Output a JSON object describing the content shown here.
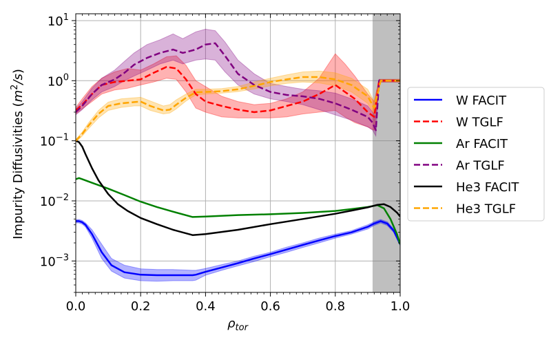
{
  "chart_data": {
    "type": "line",
    "yscale": "log",
    "xlabel": "ρ_tor",
    "ylabel": "Impurity Diffusivities (m²/s)",
    "xlim": [
      0.0,
      1.0
    ],
    "ylim": [
      0.0003,
      13
    ],
    "xticks": [
      0.0,
      0.2,
      0.4,
      0.6,
      0.8,
      1.0
    ],
    "xtick_labels": [
      "0.0",
      "0.2",
      "0.4",
      "0.6",
      "0.8",
      "1.0"
    ],
    "yticks": [
      0.001,
      0.01,
      0.1,
      1,
      10
    ],
    "ytick_labels": [
      {
        "base": "10",
        "exp": "−3"
      },
      {
        "base": "10",
        "exp": "−2"
      },
      {
        "base": "10",
        "exp": "−1"
      },
      {
        "base": "10",
        "exp": "0"
      },
      {
        "base": "10",
        "exp": "1"
      }
    ],
    "grid": true,
    "shaded_region": {
      "x_start": 0.915,
      "x_end": 1.0,
      "color": "#808080"
    },
    "legend_position": "outside-right",
    "series": [
      {
        "name": "W FACIT",
        "color": "#0000ff",
        "style": "solid",
        "x": [
          0,
          0.01,
          0.02,
          0.03,
          0.05,
          0.08,
          0.11,
          0.15,
          0.2,
          0.25,
          0.3,
          0.36,
          0.37,
          0.4,
          0.45,
          0.5,
          0.55,
          0.6,
          0.65,
          0.7,
          0.75,
          0.8,
          0.85,
          0.9,
          0.92,
          0.94,
          0.96,
          0.98,
          1.0
        ],
        "y": [
          0.0046,
          0.0046,
          0.0044,
          0.004,
          0.0028,
          0.0014,
          0.00085,
          0.00065,
          0.00059,
          0.00058,
          0.00058,
          0.00058,
          0.00059,
          0.00066,
          0.00078,
          0.00092,
          0.0011,
          0.0013,
          0.00155,
          0.00185,
          0.0022,
          0.0026,
          0.003,
          0.0037,
          0.0042,
          0.0046,
          0.0042,
          0.0032,
          0.0019
        ],
        "lower": [
          0.0043,
          0.0043,
          0.0041,
          0.0037,
          0.0024,
          0.0011,
          0.00068,
          0.00052,
          0.00047,
          0.00046,
          0.00047,
          0.00047,
          0.00048,
          0.00058,
          0.0007,
          0.00083,
          0.00098,
          0.00118,
          0.0014,
          0.00168,
          0.002,
          0.0024,
          0.0028,
          0.0034,
          0.0039,
          0.0043,
          0.0039,
          0.003,
          0.0018
        ],
        "upper": [
          0.0049,
          0.0049,
          0.0047,
          0.0043,
          0.0033,
          0.0019,
          0.0011,
          0.00085,
          0.00074,
          0.00072,
          0.00072,
          0.0007,
          0.0007,
          0.00075,
          0.00087,
          0.001,
          0.0012,
          0.0014,
          0.0017,
          0.002,
          0.0024,
          0.0028,
          0.0032,
          0.004,
          0.0045,
          0.0049,
          0.0045,
          0.0034,
          0.002
        ]
      },
      {
        "name": "W TGLF",
        "color": "#ff0000",
        "style": "dashed",
        "x": [
          0,
          0.02,
          0.05,
          0.08,
          0.12,
          0.16,
          0.2,
          0.24,
          0.28,
          0.31,
          0.34,
          0.37,
          0.4,
          0.45,
          0.5,
          0.55,
          0.6,
          0.65,
          0.7,
          0.75,
          0.8,
          0.83,
          0.86,
          0.9,
          0.92,
          0.935,
          0.95,
          0.97,
          1.0
        ],
        "y": [
          0.32,
          0.4,
          0.6,
          0.85,
          0.95,
          1.0,
          1.05,
          1.35,
          1.7,
          1.6,
          1.05,
          0.6,
          0.45,
          0.38,
          0.33,
          0.3,
          0.32,
          0.38,
          0.45,
          0.6,
          0.85,
          0.65,
          0.5,
          0.3,
          0.25,
          1.0,
          1.0,
          1.0,
          1.0
        ],
        "lower": [
          0.28,
          0.34,
          0.45,
          0.6,
          0.7,
          0.75,
          0.85,
          0.95,
          1.1,
          1.05,
          0.65,
          0.35,
          0.3,
          0.25,
          0.24,
          0.24,
          0.24,
          0.25,
          0.28,
          0.3,
          0.32,
          0.25,
          0.2,
          0.17,
          0.15,
          0.95,
          0.95,
          0.95,
          0.95
        ],
        "upper": [
          0.36,
          0.5,
          0.8,
          1.1,
          1.4,
          1.6,
          1.5,
          1.9,
          2.5,
          2.6,
          1.8,
          1.0,
          0.8,
          0.55,
          0.45,
          0.4,
          0.42,
          0.5,
          0.65,
          1.1,
          2.8,
          1.9,
          1.2,
          0.6,
          0.45,
          1.05,
          1.05,
          1.05,
          1.05
        ]
      },
      {
        "name": "Ar FACIT",
        "color": "#008000",
        "style": "solid",
        "x": [
          0,
          0.01,
          0.02,
          0.05,
          0.1,
          0.15,
          0.2,
          0.25,
          0.3,
          0.36,
          0.4,
          0.5,
          0.6,
          0.7,
          0.8,
          0.85,
          0.9,
          0.93,
          0.95,
          0.97,
          0.99,
          1.0
        ],
        "y": [
          0.023,
          0.024,
          0.023,
          0.02,
          0.016,
          0.0125,
          0.0097,
          0.0079,
          0.0066,
          0.0054,
          0.0055,
          0.0058,
          0.006,
          0.0063,
          0.0068,
          0.0073,
          0.0079,
          0.0085,
          0.0075,
          0.005,
          0.0028,
          0.0019
        ]
      },
      {
        "name": "Ar TGLF",
        "color": "#800080",
        "style": "dashed",
        "x": [
          0,
          0.02,
          0.05,
          0.08,
          0.12,
          0.15,
          0.18,
          0.22,
          0.26,
          0.3,
          0.33,
          0.37,
          0.4,
          0.43,
          0.46,
          0.5,
          0.55,
          0.6,
          0.65,
          0.7,
          0.75,
          0.8,
          0.85,
          0.9,
          0.915,
          0.925,
          0.935,
          0.95,
          0.97,
          1.0
        ],
        "y": [
          0.3,
          0.38,
          0.6,
          0.85,
          1.05,
          1.35,
          1.85,
          2.4,
          2.9,
          3.3,
          2.9,
          3.3,
          4.0,
          4.2,
          2.6,
          1.3,
          0.85,
          0.65,
          0.58,
          0.55,
          0.5,
          0.42,
          0.33,
          0.25,
          0.2,
          0.15,
          1.0,
          1.0,
          1.0,
          1.0
        ],
        "lower": [
          0.27,
          0.33,
          0.48,
          0.65,
          0.8,
          1.0,
          1.2,
          1.5,
          1.9,
          2.2,
          1.9,
          2.2,
          2.3,
          2.2,
          1.4,
          0.85,
          0.6,
          0.5,
          0.45,
          0.4,
          0.33,
          0.27,
          0.22,
          0.17,
          0.15,
          0.12,
          0.95,
          0.95,
          0.95,
          0.95
        ],
        "upper": [
          0.34,
          0.45,
          0.75,
          1.1,
          1.5,
          2.1,
          2.9,
          4.0,
          4.8,
          6.0,
          5.0,
          6.5,
          7.2,
          6.8,
          4.4,
          2.2,
          1.3,
          0.9,
          0.8,
          0.72,
          0.68,
          0.62,
          0.5,
          0.38,
          0.3,
          0.25,
          1.05,
          1.05,
          1.05,
          1.05
        ]
      },
      {
        "name": "He3 FACIT",
        "color": "#000000",
        "style": "solid",
        "x": [
          0,
          0.01,
          0.02,
          0.03,
          0.05,
          0.07,
          0.1,
          0.13,
          0.16,
          0.2,
          0.25,
          0.3,
          0.36,
          0.4,
          0.5,
          0.6,
          0.7,
          0.8,
          0.85,
          0.9,
          0.93,
          0.95,
          0.97,
          0.99,
          1.0
        ],
        "y": [
          0.1,
          0.095,
          0.08,
          0.06,
          0.035,
          0.022,
          0.013,
          0.0088,
          0.0068,
          0.0052,
          0.0041,
          0.0033,
          0.0027,
          0.0028,
          0.0033,
          0.0041,
          0.005,
          0.0061,
          0.0069,
          0.0078,
          0.0086,
          0.0088,
          0.0079,
          0.0064,
          0.0055
        ]
      },
      {
        "name": "He3 TGLF",
        "color": "#ffa500",
        "style": "dashed",
        "x": [
          0,
          0.02,
          0.04,
          0.07,
          0.1,
          0.14,
          0.18,
          0.2,
          0.23,
          0.27,
          0.29,
          0.31,
          0.34,
          0.37,
          0.4,
          0.45,
          0.5,
          0.55,
          0.6,
          0.65,
          0.7,
          0.75,
          0.8,
          0.85,
          0.9,
          0.92,
          0.94,
          0.96,
          1.0
        ],
        "y": [
          0.1,
          0.13,
          0.18,
          0.28,
          0.38,
          0.42,
          0.44,
          0.45,
          0.38,
          0.32,
          0.33,
          0.4,
          0.52,
          0.64,
          0.65,
          0.67,
          0.72,
          0.82,
          0.95,
          1.05,
          1.15,
          1.15,
          1.05,
          0.85,
          0.55,
          0.35,
          1.0,
          1.0,
          1.0
        ],
        "lower": [
          0.095,
          0.12,
          0.16,
          0.24,
          0.32,
          0.36,
          0.38,
          0.38,
          0.32,
          0.28,
          0.29,
          0.34,
          0.46,
          0.58,
          0.6,
          0.62,
          0.66,
          0.73,
          0.82,
          0.9,
          0.95,
          0.92,
          0.82,
          0.65,
          0.42,
          0.28,
          0.96,
          0.96,
          0.96
        ],
        "upper": [
          0.105,
          0.14,
          0.2,
          0.32,
          0.44,
          0.5,
          0.52,
          0.53,
          0.46,
          0.38,
          0.4,
          0.48,
          0.6,
          0.72,
          0.72,
          0.74,
          0.8,
          0.95,
          1.1,
          1.25,
          1.4,
          1.45,
          1.35,
          1.1,
          0.72,
          0.45,
          1.04,
          1.04,
          1.04
        ]
      }
    ]
  }
}
